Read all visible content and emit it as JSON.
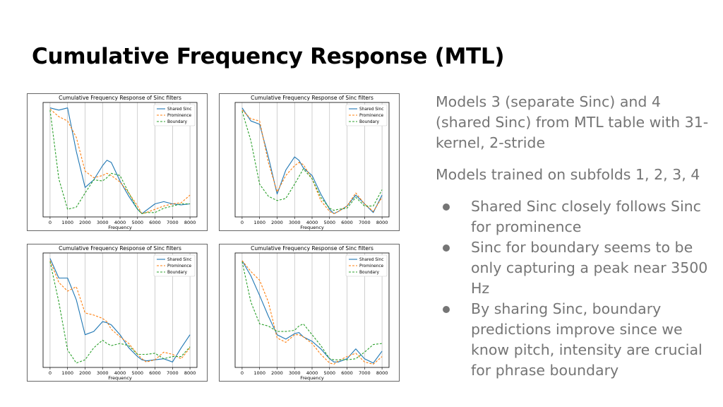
{
  "slide": {
    "title": "Cumulative Frequency Response (MTL)"
  },
  "notes": {
    "para1": "Models 3 (separate Sinc) and 4 (shared Sinc) from MTL table with 31-kernel, 2-stride",
    "para2": "Models trained on subfolds 1, 2, 3, 4",
    "bullets": [
      "Shared Sinc closely follows Sinc for prominence",
      "Sinc for boundary seems to be only capturing a peak near 3500 Hz",
      "By sharing Sinc, boundary predictions improve since we know pitch, intensity are crucial for phrase boundary"
    ]
  },
  "colors": {
    "shared_sinc": "#1f77b4",
    "prominence": "#ff7f0e",
    "boundary": "#2ca02c",
    "grid": "#b0b0b0",
    "text_gray": "#757575"
  },
  "chart_data": [
    {
      "type": "line",
      "title": "Cumulative Frequency Response of Sinc filters",
      "xlabel": "Frequency",
      "ylabel": "",
      "x_ticks": [
        0,
        1000,
        2000,
        3000,
        4000,
        5000,
        6000,
        7000,
        8000
      ],
      "xlim": [
        -400,
        8400
      ],
      "ylim": [
        0,
        1.05
      ],
      "grid": "vertical",
      "legend_position": "top-right",
      "x": [
        0,
        500,
        1000,
        1500,
        2000,
        2500,
        3000,
        3250,
        3500,
        4000,
        4500,
        5000,
        5250,
        5500,
        6000,
        6500,
        7000,
        7500,
        8000
      ],
      "series": [
        {
          "name": "Shared Sinc",
          "style": "solid",
          "values": [
            1.0,
            0.98,
            1.0,
            0.6,
            0.27,
            0.34,
            0.47,
            0.52,
            0.5,
            0.33,
            0.19,
            0.07,
            0.03,
            0.06,
            0.12,
            0.14,
            0.12,
            0.11,
            0.12
          ]
        },
        {
          "name": "Prominence",
          "style": "dashed",
          "values": [
            0.99,
            0.92,
            0.88,
            0.73,
            0.42,
            0.36,
            0.38,
            0.4,
            0.38,
            0.32,
            0.22,
            0.1,
            0.03,
            0.04,
            0.07,
            0.1,
            0.12,
            0.13,
            0.2
          ]
        },
        {
          "name": "Boundary",
          "style": "dashed",
          "values": [
            0.98,
            0.35,
            0.07,
            0.09,
            0.22,
            0.34,
            0.33,
            0.36,
            0.4,
            0.38,
            0.22,
            0.07,
            0.03,
            0.04,
            0.04,
            0.08,
            0.1,
            0.12,
            0.12
          ]
        }
      ]
    },
    {
      "type": "line",
      "title": "Cumulative Frequency Response of Sinc filters",
      "xlabel": "Frequency",
      "ylabel": "",
      "x_ticks": [
        0,
        1000,
        2000,
        3000,
        4000,
        5000,
        6000,
        7000,
        8000
      ],
      "xlim": [
        -400,
        8400
      ],
      "ylim": [
        0,
        1.05
      ],
      "grid": "vertical",
      "legend_position": "top-right",
      "x": [
        0,
        500,
        1000,
        1500,
        2000,
        2500,
        3000,
        3250,
        3500,
        4000,
        4500,
        5000,
        5250,
        5500,
        6000,
        6500,
        7000,
        7500,
        8000
      ],
      "series": [
        {
          "name": "Shared Sinc",
          "style": "solid",
          "values": [
            1.0,
            0.88,
            0.85,
            0.55,
            0.21,
            0.43,
            0.55,
            0.52,
            0.45,
            0.38,
            0.21,
            0.07,
            0.03,
            0.05,
            0.1,
            0.2,
            0.12,
            0.04,
            0.2
          ]
        },
        {
          "name": "Prominence",
          "style": "dashed",
          "values": [
            0.98,
            0.9,
            0.88,
            0.5,
            0.23,
            0.38,
            0.47,
            0.5,
            0.48,
            0.35,
            0.15,
            0.05,
            0.03,
            0.05,
            0.1,
            0.22,
            0.12,
            0.05,
            0.18
          ]
        },
        {
          "name": "Boundary",
          "style": "dashed",
          "values": [
            0.97,
            0.7,
            0.3,
            0.19,
            0.15,
            0.17,
            0.3,
            0.37,
            0.44,
            0.35,
            0.18,
            0.08,
            0.06,
            0.07,
            0.08,
            0.18,
            0.1,
            0.1,
            0.25
          ]
        }
      ]
    },
    {
      "type": "line",
      "title": "Cumulative Frequency Response of Sinc filters",
      "xlabel": "Frequency",
      "ylabel": "",
      "x_ticks": [
        0,
        1000,
        2000,
        3000,
        4000,
        5000,
        6000,
        7000,
        8000
      ],
      "xlim": [
        -400,
        8400
      ],
      "ylim": [
        0,
        1.05
      ],
      "grid": "vertical",
      "legend_position": "top-right",
      "x": [
        0,
        500,
        1000,
        1500,
        2000,
        2500,
        3000,
        3250,
        3500,
        4000,
        4500,
        5000,
        5250,
        5500,
        6000,
        6500,
        7000,
        7500,
        8000
      ],
      "series": [
        {
          "name": "Shared Sinc",
          "style": "solid",
          "values": [
            1.0,
            0.82,
            0.82,
            0.62,
            0.3,
            0.33,
            0.42,
            0.41,
            0.39,
            0.3,
            0.18,
            0.1,
            0.07,
            0.06,
            0.07,
            0.08,
            0.05,
            0.18,
            0.3
          ]
        },
        {
          "name": "Prominence",
          "style": "dashed",
          "values": [
            0.98,
            0.78,
            0.7,
            0.74,
            0.5,
            0.48,
            0.45,
            0.42,
            0.35,
            0.28,
            0.22,
            0.12,
            0.08,
            0.05,
            0.07,
            0.14,
            0.12,
            0.08,
            0.18
          ]
        },
        {
          "name": "Boundary",
          "style": "dashed",
          "values": [
            0.97,
            0.6,
            0.16,
            0.04,
            0.07,
            0.18,
            0.25,
            0.22,
            0.2,
            0.22,
            0.2,
            0.12,
            0.12,
            0.12,
            0.13,
            0.08,
            0.1,
            0.1,
            0.19
          ]
        }
      ]
    },
    {
      "type": "line",
      "title": "Cumulative Frequency Response of Sinc filters",
      "xlabel": "Frequency",
      "ylabel": "",
      "x_ticks": [
        0,
        1000,
        2000,
        3000,
        4000,
        5000,
        6000,
        7000,
        8000
      ],
      "xlim": [
        -400,
        8400
      ],
      "ylim": [
        0,
        1.05
      ],
      "grid": "vertical",
      "legend_position": "top-right",
      "x": [
        0,
        500,
        1000,
        1500,
        2000,
        2500,
        3000,
        3250,
        3500,
        4000,
        4500,
        5000,
        5250,
        5500,
        6000,
        6500,
        7000,
        7500,
        8000
      ],
      "series": [
        {
          "name": "Shared Sinc",
          "style": "solid",
          "values": [
            0.98,
            0.84,
            0.66,
            0.47,
            0.3,
            0.26,
            0.31,
            0.32,
            0.28,
            0.24,
            0.17,
            0.08,
            0.05,
            0.05,
            0.08,
            0.17,
            0.08,
            0.04,
            0.15
          ]
        },
        {
          "name": "Prominence",
          "style": "dashed",
          "values": [
            0.98,
            0.88,
            0.8,
            0.6,
            0.27,
            0.23,
            0.3,
            0.3,
            0.28,
            0.22,
            0.12,
            0.04,
            0.03,
            0.06,
            0.1,
            0.13,
            0.05,
            0.03,
            0.1
          ]
        },
        {
          "name": "Boundary",
          "style": "dashed",
          "values": [
            0.97,
            0.6,
            0.4,
            0.38,
            0.33,
            0.33,
            0.34,
            0.38,
            0.4,
            0.3,
            0.2,
            0.08,
            0.07,
            0.07,
            0.07,
            0.08,
            0.14,
            0.21,
            0.22
          ]
        }
      ]
    }
  ]
}
